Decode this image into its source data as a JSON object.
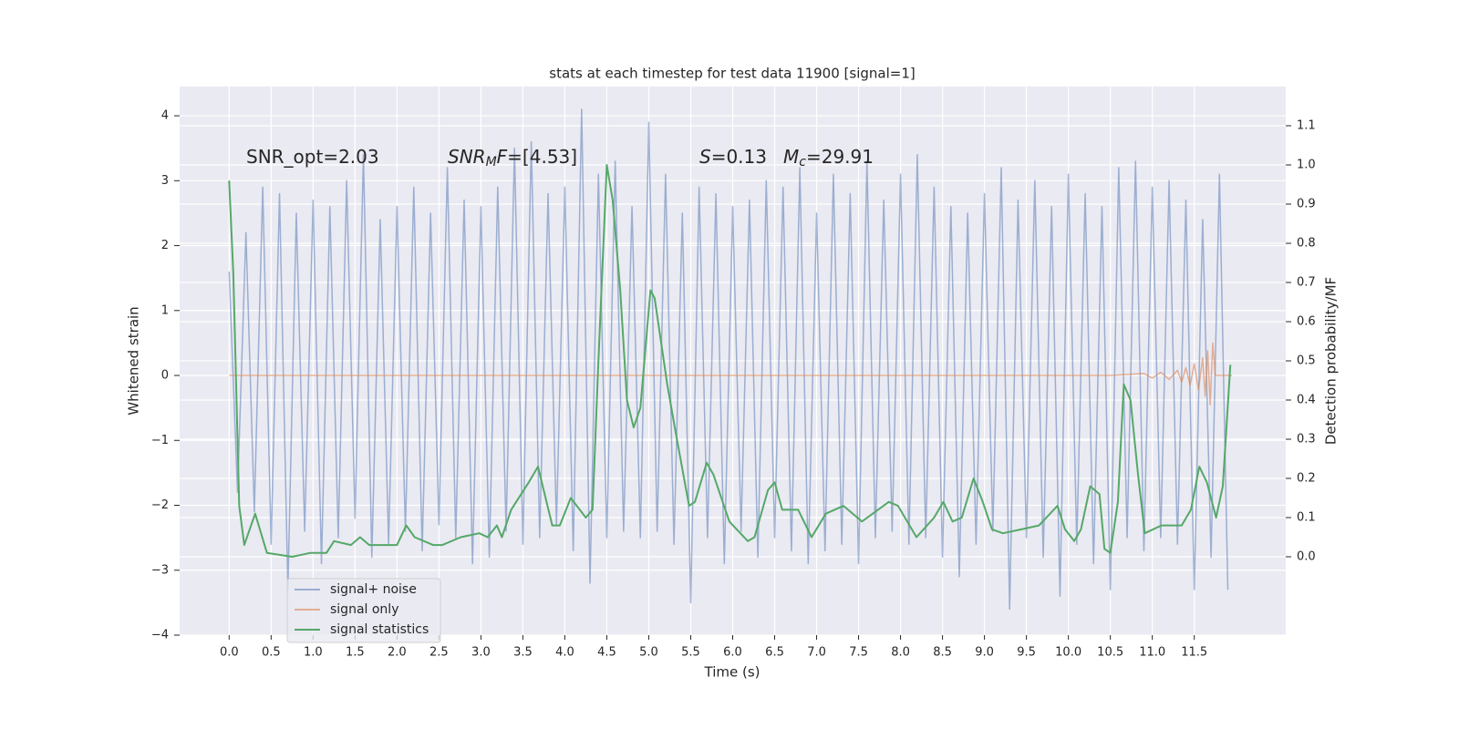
{
  "chart_data": {
    "type": "line",
    "title": "stats at each timestep for test data 11900 [signal=1]",
    "xlabel": "Time (s)",
    "ylabel": "Whitened strain",
    "y2label": "Detection probability/MF",
    "xlim": [
      -0.59,
      12.59
    ],
    "ylim": [
      -4,
      4.45
    ],
    "y2lim": [
      -0.2,
      1.2
    ],
    "xticks": [
      {
        "value": 0,
        "label": "0.0"
      },
      {
        "value": 0.5,
        "label": "0.5"
      },
      {
        "value": 1,
        "label": "1.0"
      },
      {
        "value": 1.5,
        "label": "1.5"
      },
      {
        "value": 2,
        "label": "2.0"
      },
      {
        "value": 2.5,
        "label": "2.5"
      },
      {
        "value": 3,
        "label": "3.0"
      },
      {
        "value": 3.5,
        "label": "3.5"
      },
      {
        "value": 4,
        "label": "4.0"
      },
      {
        "value": 4.5,
        "label": "4.5"
      },
      {
        "value": 5,
        "label": "5.0"
      },
      {
        "value": 5.5,
        "label": "5.5"
      },
      {
        "value": 6,
        "label": "6.0"
      },
      {
        "value": 6.5,
        "label": "6.5"
      },
      {
        "value": 7,
        "label": "7.0"
      },
      {
        "value": 7.5,
        "label": "7.5"
      },
      {
        "value": 8,
        "label": "8.0"
      },
      {
        "value": 8.5,
        "label": "8.5"
      },
      {
        "value": 9,
        "label": "9.0"
      },
      {
        "value": 9.5,
        "label": "9.5"
      },
      {
        "value": 10,
        "label": "10.0"
      },
      {
        "value": 10.5,
        "label": "10.5"
      },
      {
        "value": 11,
        "label": "11.0"
      },
      {
        "value": 11.5,
        "label": "11.5"
      }
    ],
    "yticks": [
      {
        "value": -4,
        "label": "−4"
      },
      {
        "value": -3,
        "label": "−3"
      },
      {
        "value": -2,
        "label": "−2"
      },
      {
        "value": -1,
        "label": "−1"
      },
      0,
      1,
      2,
      3,
      4
    ],
    "y2ticks": [
      {
        "value": 0,
        "label": "0.0"
      },
      {
        "value": 0.1,
        "label": "0.1"
      },
      {
        "value": 0.2,
        "label": "0.2"
      },
      {
        "value": 0.3,
        "label": "0.3"
      },
      {
        "value": 0.4,
        "label": "0.4"
      },
      {
        "value": 0.5,
        "label": "0.5"
      },
      {
        "value": 0.6,
        "label": "0.6"
      },
      {
        "value": 0.7,
        "label": "0.7"
      },
      {
        "value": 0.8,
        "label": "0.8"
      },
      {
        "value": 0.9,
        "label": "0.9"
      },
      {
        "value": 1,
        "label": "1.0"
      },
      {
        "value": 1.1,
        "label": "1.1"
      }
    ],
    "grid": true,
    "legend": "lower left",
    "annotations": [
      {
        "parts": [
          {
            "text": "SNR_opt=2.03"
          }
        ]
      },
      {
        "parts": [
          {
            "text": "SNR",
            "style": "italic"
          },
          {
            "text": "M",
            "style": "sub"
          },
          {
            "text": "F",
            "style": "italic"
          },
          {
            "text": "=[4.53]"
          }
        ]
      },
      {
        "parts": [
          {
            "text": "S",
            "style": "italic"
          },
          {
            "text": "=0.13"
          }
        ]
      },
      {
        "parts": [
          {
            "text": "M",
            "style": "italic"
          },
          {
            "text": "c",
            "style": "sub"
          },
          {
            "text": "=29.91"
          }
        ]
      }
    ],
    "series": [
      {
        "name": "signal+ noise",
        "color": "#4c72b0",
        "alpha": 0.5,
        "x": [
          0.0,
          0.1,
          0.2,
          0.3,
          0.4,
          0.5,
          0.6,
          0.7,
          0.8,
          0.9,
          1.0,
          1.1,
          1.2,
          1.3,
          1.4,
          1.5,
          1.6,
          1.7,
          1.8,
          1.9,
          2.0,
          2.1,
          2.2,
          2.3,
          2.4,
          2.5,
          2.6,
          2.7,
          2.8,
          2.9,
          3.0,
          3.1,
          3.2,
          3.3,
          3.4,
          3.5,
          3.6,
          3.7,
          3.8,
          3.9,
          4.0,
          4.1,
          4.2,
          4.3,
          4.4,
          4.5,
          4.6,
          4.7,
          4.8,
          4.9,
          5.0,
          5.1,
          5.2,
          5.3,
          5.4,
          5.5,
          5.6,
          5.7,
          5.8,
          5.9,
          6.0,
          6.1,
          6.2,
          6.3,
          6.4,
          6.5,
          6.6,
          6.7,
          6.8,
          6.9,
          7.0,
          7.1,
          7.2,
          7.3,
          7.4,
          7.5,
          7.6,
          7.7,
          7.8,
          7.9,
          8.0,
          8.1,
          8.2,
          8.3,
          8.4,
          8.5,
          8.6,
          8.7,
          8.8,
          8.9,
          9.0,
          9.1,
          9.2,
          9.3,
          9.4,
          9.5,
          9.6,
          9.7,
          9.8,
          9.9,
          10.0,
          10.1,
          10.2,
          10.3,
          10.4,
          10.5,
          10.6,
          10.7,
          10.8,
          10.9,
          11.0,
          11.1,
          11.2,
          11.3,
          11.4,
          11.5,
          11.6,
          11.7,
          11.8,
          11.9
        ],
        "values": [
          1.6,
          -1.8,
          2.2,
          -2.1,
          2.9,
          -2.6,
          2.8,
          -3.3,
          2.5,
          -2.4,
          2.7,
          -2.9,
          2.6,
          -2.5,
          3.0,
          -2.2,
          3.4,
          -2.8,
          2.4,
          -2.6,
          2.6,
          -2.4,
          2.9,
          -2.7,
          2.5,
          -2.3,
          3.2,
          -2.5,
          2.7,
          -2.9,
          2.6,
          -2.8,
          2.9,
          -2.4,
          3.5,
          -2.6,
          3.6,
          -2.5,
          2.8,
          -2.3,
          2.9,
          -2.7,
          4.1,
          -3.2,
          3.1,
          -2.5,
          3.3,
          -2.4,
          2.6,
          -2.5,
          3.9,
          -2.4,
          3.1,
          -2.6,
          2.5,
          -3.5,
          2.9,
          -2.5,
          2.8,
          -2.9,
          2.6,
          -2.4,
          2.7,
          -2.8,
          3.0,
          -2.5,
          2.9,
          -2.7,
          3.2,
          -2.9,
          2.5,
          -2.7,
          3.1,
          -2.6,
          2.8,
          -2.9,
          3.3,
          -2.5,
          2.7,
          -2.4,
          3.1,
          -2.6,
          3.4,
          -2.5,
          2.9,
          -2.8,
          2.6,
          -3.1,
          2.5,
          -2.6,
          2.8,
          -2.4,
          3.2,
          -3.6,
          2.7,
          -2.5,
          3.0,
          -2.8,
          2.6,
          -3.4,
          3.1,
          -2.6,
          2.8,
          -2.9,
          2.6,
          -3.3,
          3.2,
          -2.5,
          3.3,
          -2.7,
          2.9,
          -2.5,
          3.0,
          -2.6,
          2.7,
          -3.3,
          2.4,
          -2.8,
          3.1,
          -3.3
        ]
      },
      {
        "name": "signal only",
        "color": "#dd8452",
        "alpha": 0.6,
        "x": [
          0,
          10.5,
          10.9,
          11.0,
          11.1,
          11.2,
          11.3,
          11.35,
          11.4,
          11.45,
          11.5,
          11.55,
          11.6,
          11.63,
          11.66,
          11.69,
          11.72,
          11.75,
          11.8,
          11.95
        ],
        "values": [
          0,
          0,
          0.03,
          -0.04,
          0.05,
          -0.06,
          0.08,
          -0.1,
          0.12,
          -0.15,
          0.18,
          -0.22,
          0.27,
          -0.32,
          0.38,
          -0.45,
          0.5,
          0,
          0,
          0
        ]
      },
      {
        "name": "signal statistics",
        "color": "#55a868",
        "alpha": 1,
        "axis": "y2",
        "x": [
          0.0,
          0.05,
          0.12,
          0.18,
          0.31,
          0.45,
          0.75,
          0.97,
          1.16,
          1.25,
          1.45,
          1.56,
          1.67,
          2.0,
          2.11,
          2.21,
          2.43,
          2.54,
          2.76,
          2.98,
          3.08,
          3.19,
          3.25,
          3.36,
          3.57,
          3.68,
          3.85,
          3.94,
          4.07,
          4.25,
          4.33,
          4.4,
          4.5,
          4.57,
          4.66,
          4.74,
          4.82,
          4.9,
          5.02,
          5.07,
          5.22,
          5.31,
          5.48,
          5.55,
          5.69,
          5.77,
          5.96,
          6.18,
          6.26,
          6.42,
          6.5,
          6.59,
          6.78,
          6.94,
          7.11,
          7.32,
          7.54,
          7.86,
          7.97,
          8.19,
          8.4,
          8.51,
          8.62,
          8.73,
          8.87,
          8.98,
          9.09,
          9.22,
          9.44,
          9.65,
          9.87,
          9.96,
          10.07,
          10.15,
          10.26,
          10.37,
          10.43,
          10.5,
          10.59,
          10.66,
          10.74,
          10.83,
          10.91,
          11.11,
          11.35,
          11.46,
          11.56,
          11.65,
          11.76,
          11.84,
          11.93
        ],
        "values": [
          0.96,
          0.72,
          0.13,
          0.03,
          0.11,
          0.01,
          0.0,
          0.01,
          0.01,
          0.04,
          0.03,
          0.05,
          0.03,
          0.03,
          0.08,
          0.05,
          0.03,
          0.03,
          0.05,
          0.06,
          0.05,
          0.08,
          0.05,
          0.12,
          0.19,
          0.23,
          0.08,
          0.08,
          0.15,
          0.1,
          0.12,
          0.5,
          1.0,
          0.91,
          0.68,
          0.4,
          0.33,
          0.38,
          0.68,
          0.66,
          0.44,
          0.33,
          0.13,
          0.14,
          0.24,
          0.21,
          0.09,
          0.04,
          0.05,
          0.17,
          0.19,
          0.12,
          0.12,
          0.05,
          0.11,
          0.13,
          0.09,
          0.14,
          0.13,
          0.05,
          0.1,
          0.14,
          0.09,
          0.1,
          0.2,
          0.14,
          0.07,
          0.06,
          0.07,
          0.08,
          0.13,
          0.07,
          0.04,
          0.07,
          0.18,
          0.16,
          0.02,
          0.01,
          0.14,
          0.44,
          0.4,
          0.21,
          0.06,
          0.08,
          0.08,
          0.12,
          0.23,
          0.19,
          0.1,
          0.18,
          0.49
        ]
      }
    ]
  }
}
